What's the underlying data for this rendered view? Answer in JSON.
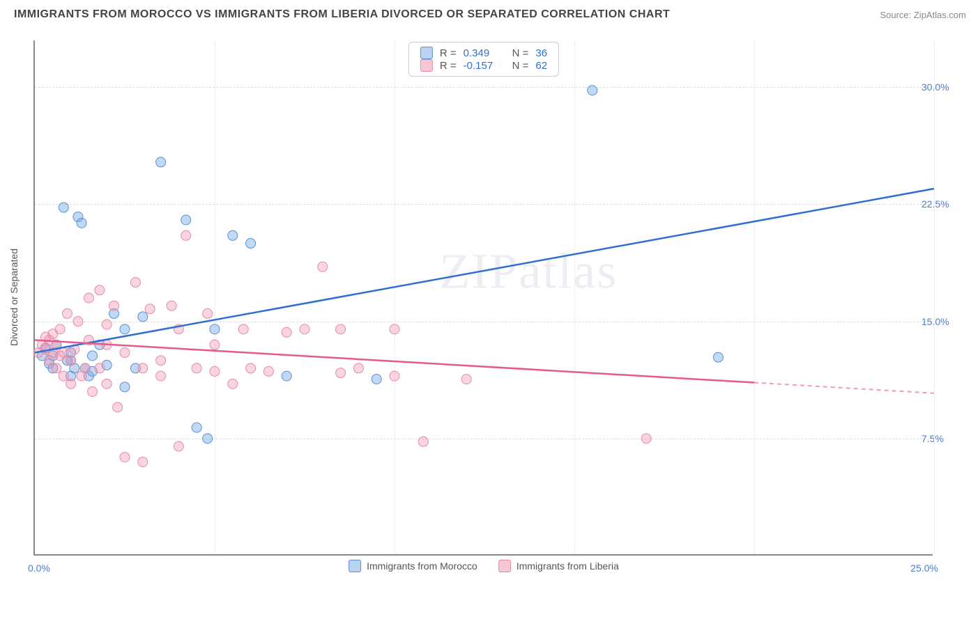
{
  "header": {
    "title": "IMMIGRANTS FROM MOROCCO VS IMMIGRANTS FROM LIBERIA DIVORCED OR SEPARATED CORRELATION CHART",
    "source_prefix": "Source: ",
    "source": "ZipAtlas.com"
  },
  "chart": {
    "type": "scatter",
    "xlim": [
      0,
      25
    ],
    "ylim": [
      0,
      33
    ],
    "x_tick_min": "0.0%",
    "x_tick_max": "25.0%",
    "y_ticks": [
      {
        "v": 7.5,
        "label": "7.5%"
      },
      {
        "v": 15.0,
        "label": "15.0%"
      },
      {
        "v": 22.5,
        "label": "22.5%"
      },
      {
        "v": 30.0,
        "label": "30.0%"
      }
    ],
    "x_gridlines": [
      5,
      10,
      15,
      20,
      25
    ],
    "ylabel": "Divorced or Separated",
    "axis_label_color": "#4a7dd1",
    "background_color": "#ffffff",
    "grid_color": "#dddddd",
    "watermark": "ZIPatlas",
    "series": [
      {
        "name": "Immigrants from Morocco",
        "swatch_fill": "#b9d3f0",
        "swatch_border": "#5a8fd6",
        "point_fill": "rgba(120,170,230,0.45)",
        "point_stroke": "#5a8fd6",
        "line_color": "#2e6fd0",
        "r": 0.349,
        "n": 36,
        "trend": {
          "x1": 0,
          "y1": 13.0,
          "x2": 25,
          "y2": 23.5,
          "data_max_x": 25
        },
        "points": [
          [
            0.2,
            12.8
          ],
          [
            0.3,
            13.3
          ],
          [
            0.4,
            12.3
          ],
          [
            0.5,
            12.0
          ],
          [
            0.6,
            13.5
          ],
          [
            0.5,
            12.8
          ],
          [
            0.8,
            22.3
          ],
          [
            0.9,
            12.5
          ],
          [
            1.0,
            11.5
          ],
          [
            1.0,
            12.5
          ],
          [
            1.1,
            12.0
          ],
          [
            1.2,
            21.7
          ],
          [
            1.3,
            21.3
          ],
          [
            1.4,
            12.0
          ],
          [
            1.5,
            11.5
          ],
          [
            1.6,
            12.8
          ],
          [
            1.6,
            11.8
          ],
          [
            1.8,
            13.5
          ],
          [
            2.0,
            12.2
          ],
          [
            2.2,
            15.5
          ],
          [
            2.5,
            14.5
          ],
          [
            2.5,
            10.8
          ],
          [
            2.8,
            12.0
          ],
          [
            3.0,
            15.3
          ],
          [
            3.5,
            25.2
          ],
          [
            4.2,
            21.5
          ],
          [
            4.5,
            8.2
          ],
          [
            4.8,
            7.5
          ],
          [
            5.0,
            14.5
          ],
          [
            5.5,
            20.5
          ],
          [
            6.0,
            20.0
          ],
          [
            7.0,
            11.5
          ],
          [
            9.5,
            11.3
          ],
          [
            15.5,
            29.8
          ],
          [
            19.0,
            12.7
          ],
          [
            1.0,
            13.0
          ]
        ]
      },
      {
        "name": "Immigrants from Liberia",
        "swatch_fill": "#f7c8d4",
        "swatch_border": "#e88aa5",
        "point_fill": "rgba(240,150,175,0.4)",
        "point_stroke": "#e88aa5",
        "line_color": "#e65a8a",
        "r": -0.157,
        "n": 62,
        "trend": {
          "x1": 0,
          "y1": 13.8,
          "x2": 25,
          "y2": 10.4,
          "data_max_x": 20
        },
        "points": [
          [
            0.1,
            13.0
          ],
          [
            0.2,
            13.5
          ],
          [
            0.3,
            14.0
          ],
          [
            0.3,
            13.2
          ],
          [
            0.4,
            12.5
          ],
          [
            0.4,
            13.8
          ],
          [
            0.5,
            13.0
          ],
          [
            0.5,
            14.2
          ],
          [
            0.6,
            12.0
          ],
          [
            0.6,
            13.5
          ],
          [
            0.7,
            12.8
          ],
          [
            0.7,
            14.5
          ],
          [
            0.8,
            11.5
          ],
          [
            0.8,
            13.0
          ],
          [
            0.9,
            15.5
          ],
          [
            1.0,
            11.0
          ],
          [
            1.0,
            12.5
          ],
          [
            1.1,
            13.2
          ],
          [
            1.2,
            15.0
          ],
          [
            1.3,
            11.5
          ],
          [
            1.4,
            12.0
          ],
          [
            1.5,
            16.5
          ],
          [
            1.6,
            10.5
          ],
          [
            1.8,
            17.0
          ],
          [
            1.8,
            12.0
          ],
          [
            2.0,
            11.0
          ],
          [
            2.0,
            13.5
          ],
          [
            2.2,
            16.0
          ],
          [
            2.3,
            9.5
          ],
          [
            2.5,
            6.3
          ],
          [
            2.5,
            13.0
          ],
          [
            2.8,
            17.5
          ],
          [
            3.0,
            12.0
          ],
          [
            3.0,
            6.0
          ],
          [
            3.2,
            15.8
          ],
          [
            3.5,
            11.5
          ],
          [
            3.5,
            12.5
          ],
          [
            3.8,
            16.0
          ],
          [
            4.0,
            7.0
          ],
          [
            4.0,
            14.5
          ],
          [
            4.2,
            20.5
          ],
          [
            4.5,
            12.0
          ],
          [
            4.8,
            15.5
          ],
          [
            5.0,
            11.8
          ],
          [
            5.0,
            13.5
          ],
          [
            5.5,
            11.0
          ],
          [
            5.8,
            14.5
          ],
          [
            6.0,
            12.0
          ],
          [
            6.5,
            11.8
          ],
          [
            7.0,
            14.3
          ],
          [
            7.5,
            14.5
          ],
          [
            8.0,
            18.5
          ],
          [
            8.5,
            11.7
          ],
          [
            8.5,
            14.5
          ],
          [
            9.0,
            12.0
          ],
          [
            10.0,
            11.5
          ],
          [
            10.0,
            14.5
          ],
          [
            10.8,
            7.3
          ],
          [
            12.0,
            11.3
          ],
          [
            17.0,
            7.5
          ],
          [
            1.5,
            13.8
          ],
          [
            2.0,
            14.8
          ]
        ]
      }
    ],
    "legend_top": {
      "r_label": "R =",
      "n_label": "N =",
      "value_color": "#2e6fd0",
      "text_color": "#555555"
    }
  }
}
